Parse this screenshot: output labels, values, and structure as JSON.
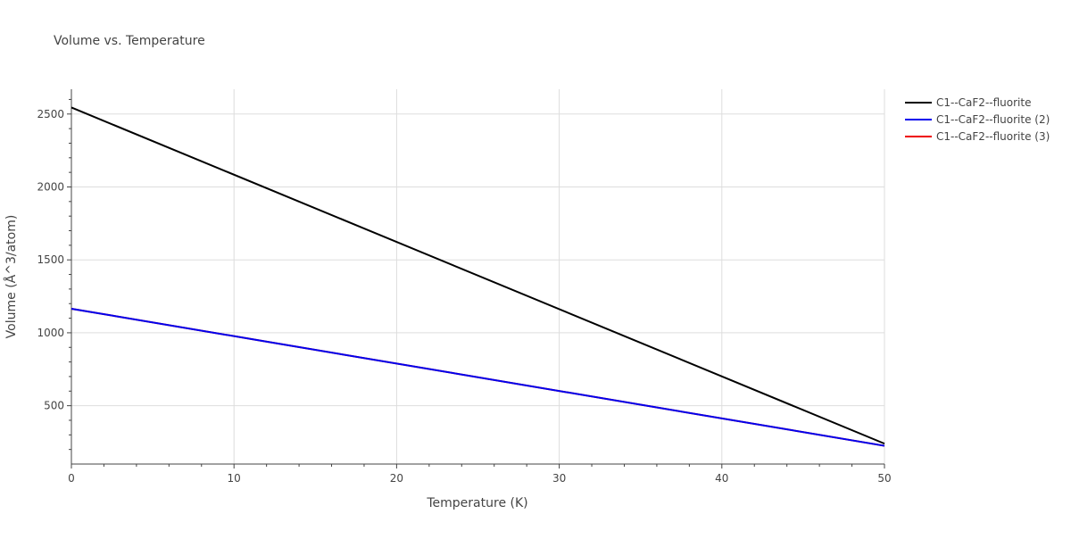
{
  "chart_data": {
    "type": "line",
    "title": "Volume vs. Temperature",
    "xlabel": "Temperature (K)",
    "ylabel": "Volume (Å^3/atom)",
    "xlim": [
      0,
      50
    ],
    "ylim": [
      100,
      2670
    ],
    "x_ticks": [
      0,
      10,
      20,
      30,
      40,
      50
    ],
    "y_ticks": [
      500,
      1000,
      1500,
      2000,
      2500
    ],
    "grid": true,
    "legend_position": "top-right",
    "series": [
      {
        "name": "C1--CaF2--fluorite",
        "color": "#000000",
        "x": [
          0,
          50
        ],
        "y": [
          2545,
          240
        ]
      },
      {
        "name": "C1--CaF2--fluorite (2)",
        "color": "#0000ee",
        "x": [
          0,
          50
        ],
        "y": [
          1165,
          225
        ]
      },
      {
        "name": "C1--CaF2--fluorite (3)",
        "color": "#ee0000",
        "x": [
          0,
          50
        ],
        "y": [
          1165,
          225
        ]
      }
    ]
  }
}
